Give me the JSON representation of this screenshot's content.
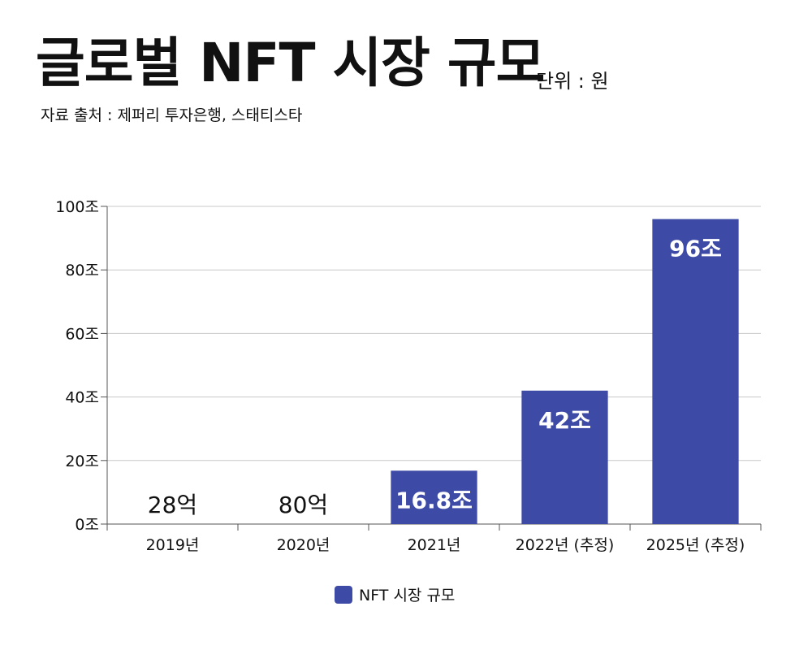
{
  "header": {
    "title": "글로벌 NFT 시장 규모",
    "unit": "단위 : 원",
    "source": "자료 출처 : 제퍼리 투자은행, 스태티스타"
  },
  "colors": {
    "bar": "#3d4aa6",
    "grid": "#c8c8c8",
    "axis": "#555555"
  },
  "chart_data": {
    "type": "bar",
    "title": "글로벌 NFT 시장 규모",
    "categories": [
      "2019년",
      "2020년",
      "2021년",
      "2022년 (추정)",
      "2025년 (추정)"
    ],
    "series": [
      {
        "name": "NFT 시장 규모",
        "values": [
          0.0028,
          0.008,
          16.8,
          42,
          96
        ],
        "labels": [
          "28억",
          "80억",
          "16.8조",
          "42조",
          "96조"
        ]
      }
    ],
    "yticks": [
      0,
      20,
      40,
      60,
      80,
      100
    ],
    "ytick_labels": [
      "0조",
      "20조",
      "40조",
      "60조",
      "80조",
      "100조"
    ],
    "ylim": [
      0,
      100
    ],
    "grid": true,
    "legend": "bottom-center"
  }
}
